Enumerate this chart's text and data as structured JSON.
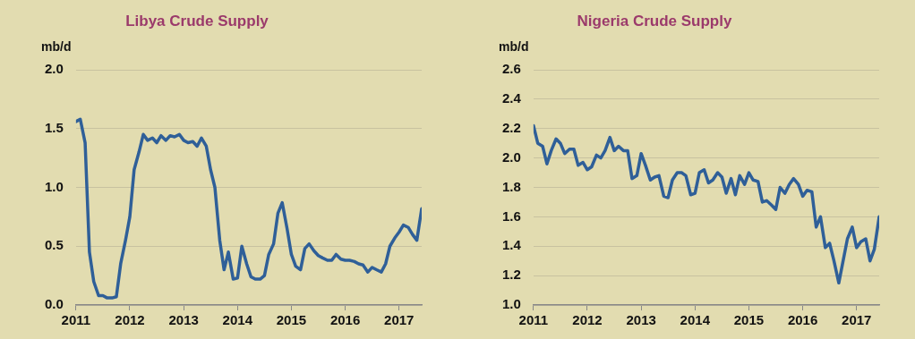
{
  "chart_data": [
    {
      "type": "line",
      "title": "Libya Crude Supply",
      "ylabel": "mb/d",
      "grid": "y",
      "legend": false,
      "marker": "none",
      "line_style": "solid",
      "x": [
        2011.0,
        2011.08,
        2011.17,
        2011.25,
        2011.33,
        2011.42,
        2011.5,
        2011.58,
        2011.67,
        2011.75,
        2011.83,
        2011.92,
        2012.0,
        2012.08,
        2012.17,
        2012.25,
        2012.33,
        2012.42,
        2012.5,
        2012.58,
        2012.67,
        2012.75,
        2012.83,
        2012.92,
        2013.0,
        2013.08,
        2013.17,
        2013.25,
        2013.33,
        2013.42,
        2013.5,
        2013.58,
        2013.67,
        2013.75,
        2013.83,
        2013.92,
        2014.0,
        2014.08,
        2014.17,
        2014.25,
        2014.33,
        2014.42,
        2014.5,
        2014.58,
        2014.67,
        2014.75,
        2014.83,
        2014.92,
        2015.0,
        2015.08,
        2015.17,
        2015.25,
        2015.33,
        2015.42,
        2015.5,
        2015.58,
        2015.67,
        2015.75,
        2015.83,
        2015.92,
        2016.0,
        2016.08,
        2016.17,
        2016.25,
        2016.33,
        2016.42,
        2016.5,
        2016.58,
        2016.67,
        2016.75,
        2016.83,
        2016.92,
        2017.0,
        2017.08,
        2017.17,
        2017.25,
        2017.33,
        2017.42
      ],
      "series": [
        {
          "color": "#2f5f98",
          "values": [
            1.56,
            1.58,
            1.38,
            0.45,
            0.2,
            0.08,
            0.08,
            0.06,
            0.06,
            0.07,
            0.35,
            0.55,
            0.75,
            1.15,
            1.3,
            1.45,
            1.4,
            1.42,
            1.38,
            1.44,
            1.4,
            1.44,
            1.43,
            1.45,
            1.4,
            1.38,
            1.39,
            1.35,
            1.42,
            1.35,
            1.15,
            1.0,
            0.55,
            0.3,
            0.45,
            0.22,
            0.23,
            0.5,
            0.35,
            0.24,
            0.22,
            0.22,
            0.25,
            0.43,
            0.52,
            0.78,
            0.87,
            0.65,
            0.43,
            0.33,
            0.3,
            0.48,
            0.52,
            0.46,
            0.42,
            0.4,
            0.38,
            0.38,
            0.43,
            0.39,
            0.38,
            0.38,
            0.37,
            0.35,
            0.34,
            0.28,
            0.32,
            0.3,
            0.28,
            0.35,
            0.5,
            0.57,
            0.62,
            0.68,
            0.66,
            0.6,
            0.55,
            0.82
          ]
        }
      ],
      "xlim": [
        2011,
        2017.42
      ],
      "xticks": [
        2011,
        2012,
        2013,
        2014,
        2015,
        2016,
        2017
      ],
      "ylim": [
        0,
        2
      ],
      "yticks": [
        {
          "value": 0,
          "label": "0.0"
        },
        {
          "value": 0.5,
          "label": "0.5"
        },
        {
          "value": 1,
          "label": "1.0"
        },
        {
          "value": 1.5,
          "label": "1.5"
        },
        {
          "value": 2,
          "label": "2.0"
        }
      ]
    },
    {
      "type": "line",
      "title": "Nigeria Crude Supply",
      "ylabel": "mb/d",
      "grid": "y",
      "legend": false,
      "marker": "none",
      "line_style": "solid",
      "x": [
        2011.0,
        2011.08,
        2011.17,
        2011.25,
        2011.33,
        2011.42,
        2011.5,
        2011.58,
        2011.67,
        2011.75,
        2011.83,
        2011.92,
        2012.0,
        2012.08,
        2012.17,
        2012.25,
        2012.33,
        2012.42,
        2012.5,
        2012.58,
        2012.67,
        2012.75,
        2012.83,
        2012.92,
        2013.0,
        2013.08,
        2013.17,
        2013.25,
        2013.33,
        2013.42,
        2013.5,
        2013.58,
        2013.67,
        2013.75,
        2013.83,
        2013.92,
        2014.0,
        2014.08,
        2014.17,
        2014.25,
        2014.33,
        2014.42,
        2014.5,
        2014.58,
        2014.67,
        2014.75,
        2014.83,
        2014.92,
        2015.0,
        2015.08,
        2015.17,
        2015.25,
        2015.33,
        2015.42,
        2015.5,
        2015.58,
        2015.67,
        2015.75,
        2015.83,
        2015.92,
        2016.0,
        2016.08,
        2016.17,
        2016.25,
        2016.33,
        2016.42,
        2016.5,
        2016.58,
        2016.67,
        2016.75,
        2016.83,
        2016.92,
        2017.0,
        2017.08,
        2017.17,
        2017.25,
        2017.33,
        2017.42
      ],
      "series": [
        {
          "color": "#2f5f98",
          "values": [
            2.22,
            2.1,
            2.08,
            1.96,
            2.05,
            2.13,
            2.1,
            2.03,
            2.06,
            2.06,
            1.95,
            1.97,
            1.92,
            1.94,
            2.02,
            2.0,
            2.05,
            2.14,
            2.05,
            2.08,
            2.05,
            2.05,
            1.86,
            1.88,
            2.03,
            1.95,
            1.85,
            1.87,
            1.88,
            1.74,
            1.73,
            1.85,
            1.9,
            1.9,
            1.88,
            1.75,
            1.76,
            1.9,
            1.92,
            1.83,
            1.85,
            1.9,
            1.87,
            1.76,
            1.86,
            1.75,
            1.88,
            1.82,
            1.9,
            1.85,
            1.84,
            1.7,
            1.71,
            1.68,
            1.65,
            1.8,
            1.76,
            1.82,
            1.86,
            1.82,
            1.74,
            1.78,
            1.77,
            1.53,
            1.6,
            1.39,
            1.42,
            1.3,
            1.15,
            1.3,
            1.45,
            1.53,
            1.39,
            1.43,
            1.45,
            1.3,
            1.38,
            1.6
          ]
        }
      ],
      "xlim": [
        2011,
        2017.42
      ],
      "xticks": [
        2011,
        2012,
        2013,
        2014,
        2015,
        2016,
        2017
      ],
      "ylim": [
        1,
        2.6
      ],
      "yticks": [
        {
          "value": 1,
          "label": "1.0"
        },
        {
          "value": 1.2,
          "label": "1.2"
        },
        {
          "value": 1.4,
          "label": "1.4"
        },
        {
          "value": 1.6,
          "label": "1.6"
        },
        {
          "value": 1.8,
          "label": "1.8"
        },
        {
          "value": 2,
          "label": "2.0"
        },
        {
          "value": 2.2,
          "label": "2.2"
        },
        {
          "value": 2.4,
          "label": "2.4"
        },
        {
          "value": 2.6,
          "label": "2.6"
        }
      ]
    }
  ]
}
